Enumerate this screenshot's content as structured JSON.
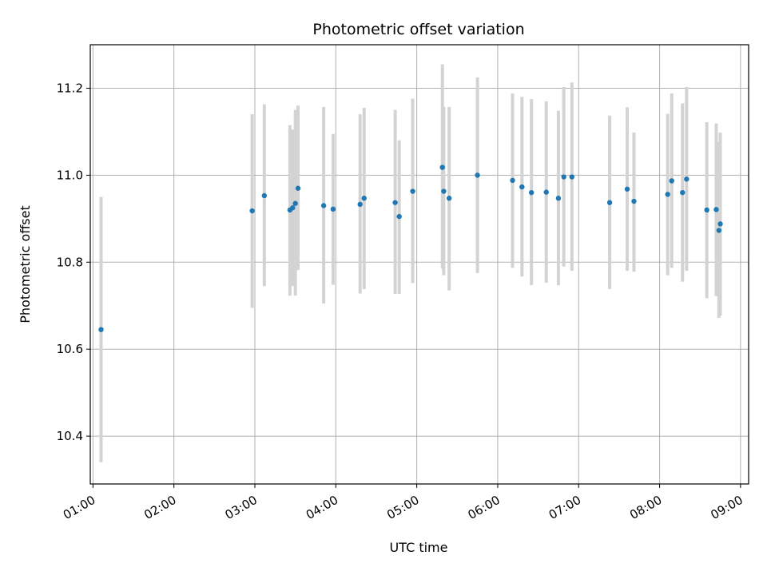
{
  "chart_data": {
    "type": "scatter",
    "title": "Photometric offset variation",
    "xlabel": "UTC time",
    "ylabel": "Photometric offset",
    "x_tick_labels": [
      "01:00",
      "02:00",
      "03:00",
      "04:00",
      "05:00",
      "06:00",
      "07:00",
      "08:00",
      "09:00"
    ],
    "y_tick_labels": [
      "10.4",
      "10.6",
      "10.8",
      "11.0",
      "11.2"
    ],
    "xlim": [
      "00:58",
      "09:06"
    ],
    "ylim": [
      10.29,
      11.3
    ],
    "grid": true,
    "point_color": "#1f77b4",
    "errorbar_color": "#d3d3d3",
    "points": [
      {
        "t": "01:06",
        "y": 10.645,
        "lo": 10.34,
        "hi": 10.95
      },
      {
        "t": "02:58",
        "y": 10.918,
        "lo": 10.695,
        "hi": 11.14
      },
      {
        "t": "03:07",
        "y": 10.953,
        "lo": 10.745,
        "hi": 11.163
      },
      {
        "t": "03:26",
        "y": 10.92,
        "lo": 10.723,
        "hi": 11.115
      },
      {
        "t": "03:28",
        "y": 10.925,
        "lo": 10.745,
        "hi": 11.105
      },
      {
        "t": "03:30",
        "y": 10.935,
        "lo": 10.723,
        "hi": 11.15
      },
      {
        "t": "03:32",
        "y": 10.97,
        "lo": 10.782,
        "hi": 11.16
      },
      {
        "t": "03:51",
        "y": 10.93,
        "lo": 10.705,
        "hi": 11.157
      },
      {
        "t": "03:58",
        "y": 10.922,
        "lo": 10.748,
        "hi": 11.095
      },
      {
        "t": "04:18",
        "y": 10.933,
        "lo": 10.728,
        "hi": 11.14
      },
      {
        "t": "04:21",
        "y": 10.947,
        "lo": 10.738,
        "hi": 11.155
      },
      {
        "t": "04:44",
        "y": 10.937,
        "lo": 10.727,
        "hi": 11.15
      },
      {
        "t": "04:47",
        "y": 10.905,
        "lo": 10.727,
        "hi": 11.08
      },
      {
        "t": "04:57",
        "y": 10.963,
        "lo": 10.752,
        "hi": 11.176
      },
      {
        "t": "05:19",
        "y": 11.018,
        "lo": 10.785,
        "hi": 11.255
      },
      {
        "t": "05:20",
        "y": 10.963,
        "lo": 10.77,
        "hi": 11.157
      },
      {
        "t": "05:24",
        "y": 10.947,
        "lo": 10.735,
        "hi": 11.157
      },
      {
        "t": "05:45",
        "y": 11.0,
        "lo": 10.775,
        "hi": 11.225
      },
      {
        "t": "06:11",
        "y": 10.988,
        "lo": 10.787,
        "hi": 11.188
      },
      {
        "t": "06:18",
        "y": 10.973,
        "lo": 10.767,
        "hi": 11.18
      },
      {
        "t": "06:25",
        "y": 10.96,
        "lo": 10.747,
        "hi": 11.175
      },
      {
        "t": "06:36",
        "y": 10.961,
        "lo": 10.753,
        "hi": 11.17
      },
      {
        "t": "06:45",
        "y": 10.947,
        "lo": 10.747,
        "hi": 11.148
      },
      {
        "t": "06:49",
        "y": 10.996,
        "lo": 10.79,
        "hi": 11.203
      },
      {
        "t": "06:55",
        "y": 10.996,
        "lo": 10.78,
        "hi": 11.213
      },
      {
        "t": "07:23",
        "y": 10.937,
        "lo": 10.738,
        "hi": 11.137
      },
      {
        "t": "07:36",
        "y": 10.968,
        "lo": 10.78,
        "hi": 11.156
      },
      {
        "t": "07:41",
        "y": 10.94,
        "lo": 10.778,
        "hi": 11.098
      },
      {
        "t": "08:06",
        "y": 10.956,
        "lo": 10.77,
        "hi": 11.141
      },
      {
        "t": "08:09",
        "y": 10.987,
        "lo": 10.787,
        "hi": 11.188
      },
      {
        "t": "08:17",
        "y": 10.96,
        "lo": 10.755,
        "hi": 11.165
      },
      {
        "t": "08:20",
        "y": 10.991,
        "lo": 10.78,
        "hi": 11.203
      },
      {
        "t": "08:35",
        "y": 10.92,
        "lo": 10.717,
        "hi": 11.122
      },
      {
        "t": "08:42",
        "y": 10.921,
        "lo": 10.722,
        "hi": 11.119
      },
      {
        "t": "08:44",
        "y": 10.873,
        "lo": 10.672,
        "hi": 11.077
      },
      {
        "t": "08:45",
        "y": 10.888,
        "lo": 10.677,
        "hi": 11.098
      }
    ]
  }
}
